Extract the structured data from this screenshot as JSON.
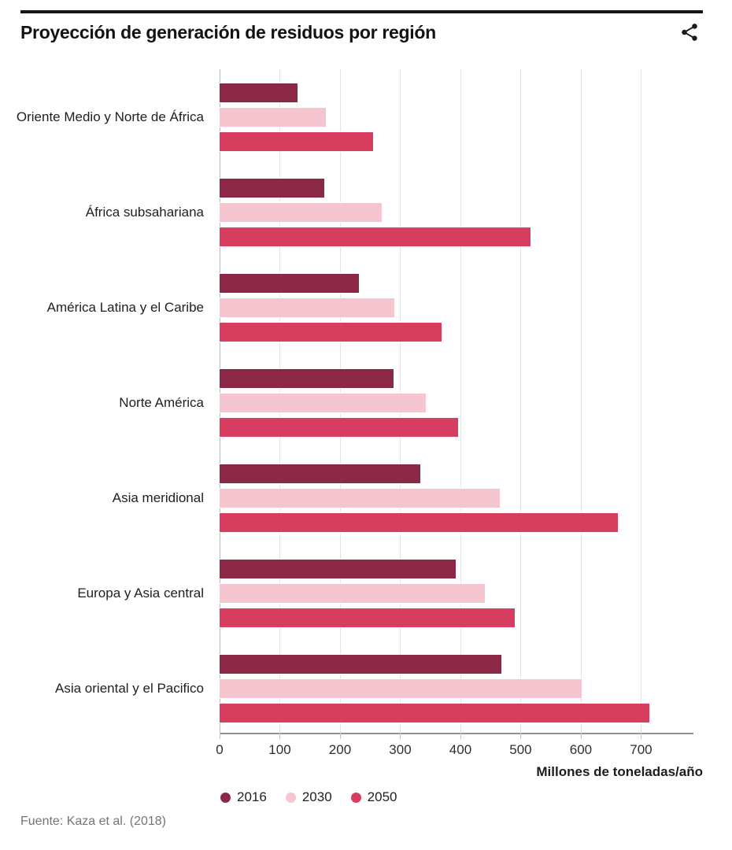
{
  "header": {
    "title": "Proyección de generación de residuos por región",
    "share_icon": "share-icon"
  },
  "chart_data": {
    "type": "bar",
    "orientation": "horizontal",
    "title": "Proyección de generación de residuos por región",
    "unit_label": "Millones de toneladas/año",
    "categories": [
      "Oriente Medio y Norte de África",
      "África subsahariana",
      "América Latina y el Caribe",
      "Norte América",
      "Asia meridional",
      "Europa y Asia central",
      "Asia oriental y el Pacifico"
    ],
    "series": [
      {
        "name": "2016",
        "color": "#8B2846",
        "values": [
          129,
          174,
          231,
          289,
          334,
          392,
          468
        ]
      },
      {
        "name": "2030",
        "color": "#F5C6D0",
        "values": [
          177,
          269,
          290,
          342,
          466,
          440,
          602
        ]
      },
      {
        "name": "2050",
        "color": "#D63D5F",
        "values": [
          255,
          516,
          369,
          396,
          661,
          490,
          714
        ]
      }
    ],
    "x_axis": {
      "min": 0,
      "max": 787,
      "ticks": [
        0,
        100,
        200,
        300,
        400,
        500,
        600,
        700
      ],
      "grid": true
    },
    "legend": {
      "position": "bottom-left",
      "items": [
        "2016",
        "2030",
        "2050"
      ]
    }
  },
  "footer": {
    "source": "Fuente: Kaza et al. (2018)"
  }
}
